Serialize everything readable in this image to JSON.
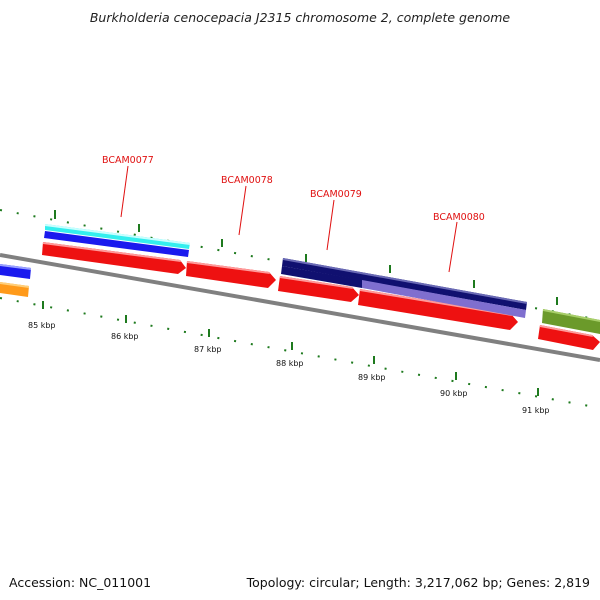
{
  "title": "Burkholderia cenocepacia J2315 chromosome 2, complete genome",
  "footer": {
    "accession": "Accession: NC_011001",
    "summary": "Topology: circular; Length: 3,217,062 bp; Genes: 2,819"
  },
  "kbp_labels": [
    "85 kbp",
    "86 kbp",
    "87 kbp",
    "88 kbp",
    "89 kbp",
    "90 kbp",
    "91 kbp"
  ],
  "gene_labels": [
    "BCAM0077",
    "BCAM0078",
    "BCAM0079",
    "BCAM0080"
  ],
  "colors": {
    "backbone": "#808080",
    "tick": "#1e7a1e",
    "label_text": "#e01010",
    "cds": "#ee1111",
    "cyan": "#33eeee",
    "blue": "#1a1aee",
    "navy": "#101070",
    "lavender": "#7f6fcf",
    "orange": "#ff9a1a",
    "olive": "#6b9a2a"
  }
}
